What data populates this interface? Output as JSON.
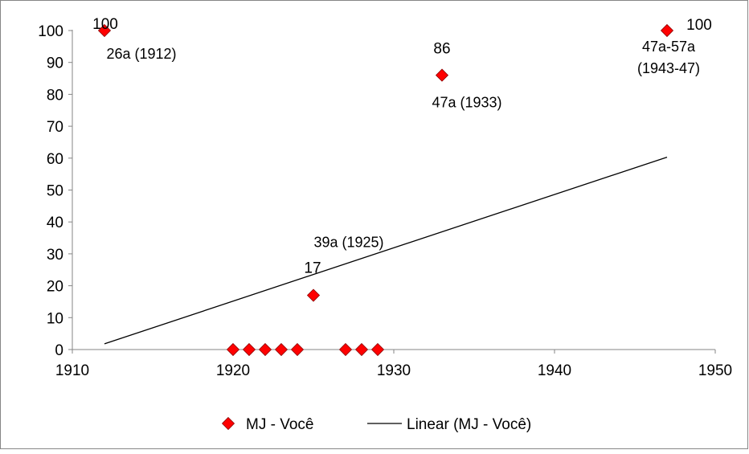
{
  "chart_data": {
    "type": "scatter",
    "xlim": [
      1910,
      1950
    ],
    "ylim": [
      0,
      100
    ],
    "x_ticks": [
      1910,
      1920,
      1930,
      1940,
      1950
    ],
    "y_ticks": [
      0,
      10,
      20,
      30,
      40,
      50,
      60,
      70,
      80,
      90,
      100
    ],
    "grid": false,
    "legend_position": "bottom",
    "series": [
      {
        "name": "MJ - Você",
        "marker": "diamond",
        "color": "#ff0000",
        "points": [
          {
            "x": 1912,
            "y": 100
          },
          {
            "x": 1920,
            "y": 0
          },
          {
            "x": 1921,
            "y": 0
          },
          {
            "x": 1922,
            "y": 0
          },
          {
            "x": 1923,
            "y": 0
          },
          {
            "x": 1924,
            "y": 0
          },
          {
            "x": 1925,
            "y": 17
          },
          {
            "x": 1927,
            "y": 0
          },
          {
            "x": 1928,
            "y": 0
          },
          {
            "x": 1929,
            "y": 0
          },
          {
            "x": 1933,
            "y": 86
          },
          {
            "x": 1947,
            "y": 100
          }
        ]
      }
    ],
    "trendline": {
      "name": "Linear (MJ - Você)",
      "type": "linear",
      "color": "#000000",
      "x": [
        1912,
        1947
      ],
      "y": [
        1.8,
        60.3
      ]
    },
    "data_labels": [
      {
        "text": "100",
        "x": 1912,
        "y": 100
      },
      {
        "text": "17",
        "x": 1925,
        "y": 17
      },
      {
        "text": "86",
        "x": 1933,
        "y": 86
      },
      {
        "text": "100",
        "x": 1947,
        "y": 100
      }
    ],
    "annotations": [
      {
        "lines": [
          "26a (1912)"
        ],
        "x": 1912,
        "y": 100
      },
      {
        "lines": [
          "39a (1925)"
        ],
        "x": 1925,
        "y": 17
      },
      {
        "lines": [
          "47a (1933)"
        ],
        "x": 1933,
        "y": 86
      },
      {
        "lines": [
          "47a-57a",
          "(1943-47)"
        ],
        "x": 1947,
        "y": 100
      }
    ],
    "colors": {
      "marker_fill": "#ff0000",
      "marker_stroke": "#8b0000",
      "axis": "#868686",
      "trendline": "#000000",
      "border": "#868686"
    }
  }
}
